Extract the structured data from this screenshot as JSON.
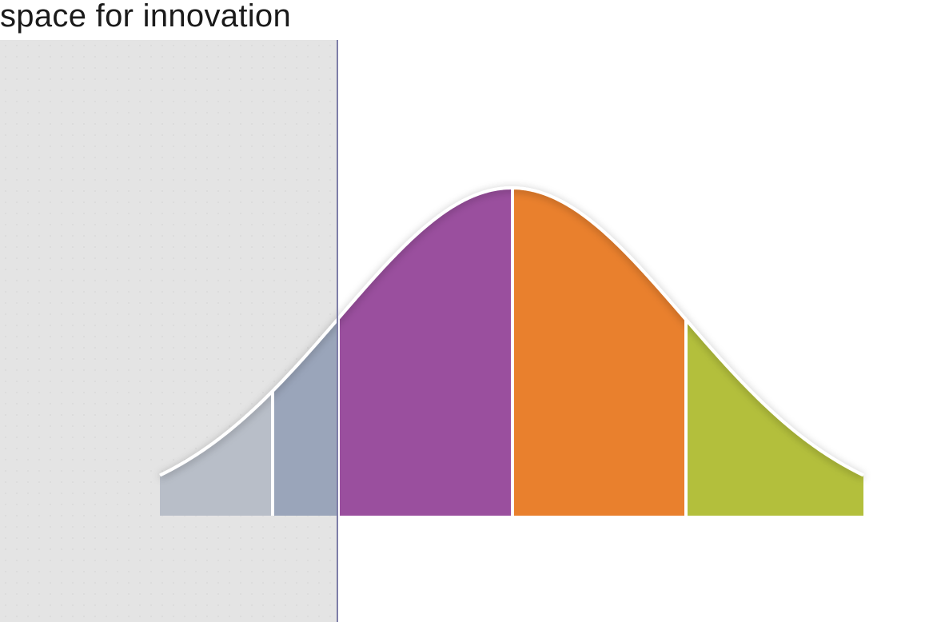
{
  "title": "space for innovation",
  "diagram": {
    "type": "bell-curve-segments",
    "segments": [
      {
        "name": "segment-1",
        "color": "#b8bec8"
      },
      {
        "name": "segment-2",
        "color": "#9aa5ba"
      },
      {
        "name": "segment-3",
        "color": "#9a4f9e"
      },
      {
        "name": "segment-4",
        "color": "#e9802d"
      },
      {
        "name": "segment-5",
        "color": "#b3bf3c"
      }
    ],
    "outline_color": "#ffffff",
    "shade_color": "#e4e4e4",
    "divider_color": "#7e7ea8"
  }
}
